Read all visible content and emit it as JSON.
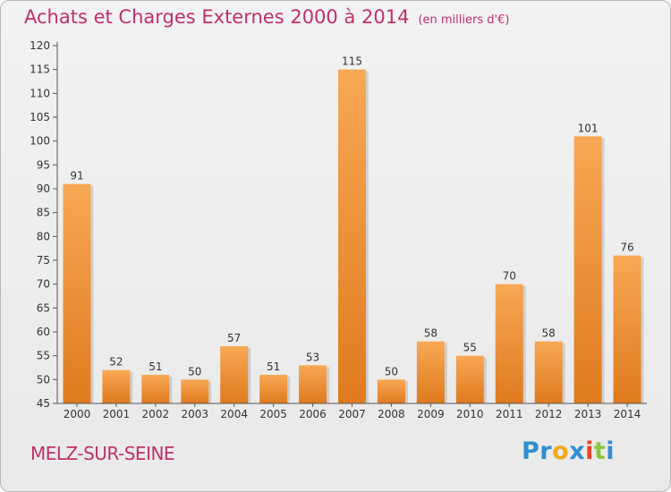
{
  "title": "Achats et Charges Externes 2000 à 2014",
  "unit": "(en milliers d'€)",
  "commune": "MELZ-SUR-SEINE",
  "logo": {
    "letters": [
      "P",
      "r",
      "o",
      "x",
      "i",
      "t",
      "i"
    ],
    "colors": [
      "#2f8fd0",
      "#2f8fd0",
      "#f3a81b",
      "#2f8fd0",
      "#e9452d",
      "#8cc63f",
      "#2f8fd0"
    ]
  },
  "colors": {
    "bar_top": "#f8a854",
    "bar_bottom": "#e07a1e",
    "text": "#c0306a"
  },
  "chart_data": {
    "type": "bar",
    "categories": [
      "2000",
      "2001",
      "2002",
      "2003",
      "2004",
      "2005",
      "2006",
      "2007",
      "2008",
      "2009",
      "2010",
      "2011",
      "2012",
      "2013",
      "2014"
    ],
    "values": [
      91,
      52,
      51,
      50,
      57,
      51,
      53,
      115,
      50,
      58,
      55,
      70,
      58,
      101,
      76
    ],
    "ylim": [
      45,
      120
    ],
    "yticks": [
      45,
      50,
      55,
      60,
      65,
      70,
      75,
      80,
      85,
      90,
      95,
      100,
      105,
      110,
      115,
      120
    ],
    "grid": false
  }
}
